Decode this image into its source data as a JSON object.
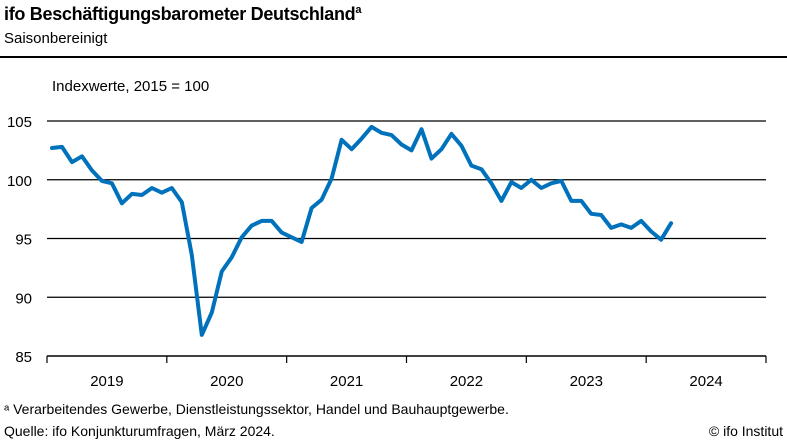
{
  "header": {
    "title": "ifo Beschäftigungsbarometer Deutschland",
    "title_footnote_mark": "a",
    "subtitle": "Saisonbereinigt"
  },
  "chart_data": {
    "type": "line",
    "title": "ifo Beschäftigungsbarometer Deutschland",
    "subtitle": "Saisonbereinigt",
    "ylabel": "Indexwerte, 2015 = 100",
    "ylim": [
      85,
      105
    ],
    "yticks": [
      85,
      90,
      95,
      100,
      105
    ],
    "xticks": [
      "2019",
      "2020",
      "2021",
      "2022",
      "2023",
      "2024"
    ],
    "x_start": "2019-01",
    "x_end": "2024-12",
    "grid": "horizontal",
    "color": "#0072BC",
    "x": [
      "2019-01",
      "2019-02",
      "2019-03",
      "2019-04",
      "2019-05",
      "2019-06",
      "2019-07",
      "2019-08",
      "2019-09",
      "2019-10",
      "2019-11",
      "2019-12",
      "2020-01",
      "2020-02",
      "2020-03",
      "2020-04",
      "2020-05",
      "2020-06",
      "2020-07",
      "2020-08",
      "2020-09",
      "2020-10",
      "2020-11",
      "2020-12",
      "2021-01",
      "2021-02",
      "2021-03",
      "2021-04",
      "2021-05",
      "2021-06",
      "2021-07",
      "2021-08",
      "2021-09",
      "2021-10",
      "2021-11",
      "2021-12",
      "2022-01",
      "2022-02",
      "2022-03",
      "2022-04",
      "2022-05",
      "2022-06",
      "2022-07",
      "2022-08",
      "2022-09",
      "2022-10",
      "2022-11",
      "2022-12",
      "2023-01",
      "2023-02",
      "2023-03",
      "2023-04",
      "2023-05",
      "2023-06",
      "2023-07",
      "2023-08",
      "2023-09",
      "2023-10",
      "2023-11",
      "2023-12",
      "2024-01",
      "2024-02",
      "2024-03"
    ],
    "values": [
      102.7,
      102.8,
      101.5,
      102.0,
      100.8,
      99.9,
      99.7,
      98.0,
      98.8,
      98.7,
      99.3,
      98.9,
      99.3,
      98.1,
      93.6,
      86.8,
      88.7,
      92.2,
      93.4,
      95.1,
      96.1,
      96.5,
      96.5,
      95.5,
      95.1,
      94.7,
      97.6,
      98.3,
      100.1,
      103.4,
      102.6,
      103.5,
      104.5,
      104.0,
      103.8,
      103.0,
      102.5,
      104.3,
      101.8,
      102.6,
      103.9,
      102.9,
      101.2,
      100.9,
      99.7,
      98.2,
      99.8,
      99.3,
      100.0,
      99.3,
      99.7,
      99.9,
      98.2,
      98.2,
      97.1,
      97.0,
      95.9,
      96.2,
      95.9,
      96.5,
      95.6,
      94.9,
      96.3
    ]
  },
  "footer": {
    "footnote": "ᵃ Verarbeitendes Gewerbe, Dienstleistungssektor, Handel und Bauhauptgewerbe.",
    "source": "Quelle: ifo Konjunkturumfragen, März 2024.",
    "copyright": "© ifo Institut"
  }
}
